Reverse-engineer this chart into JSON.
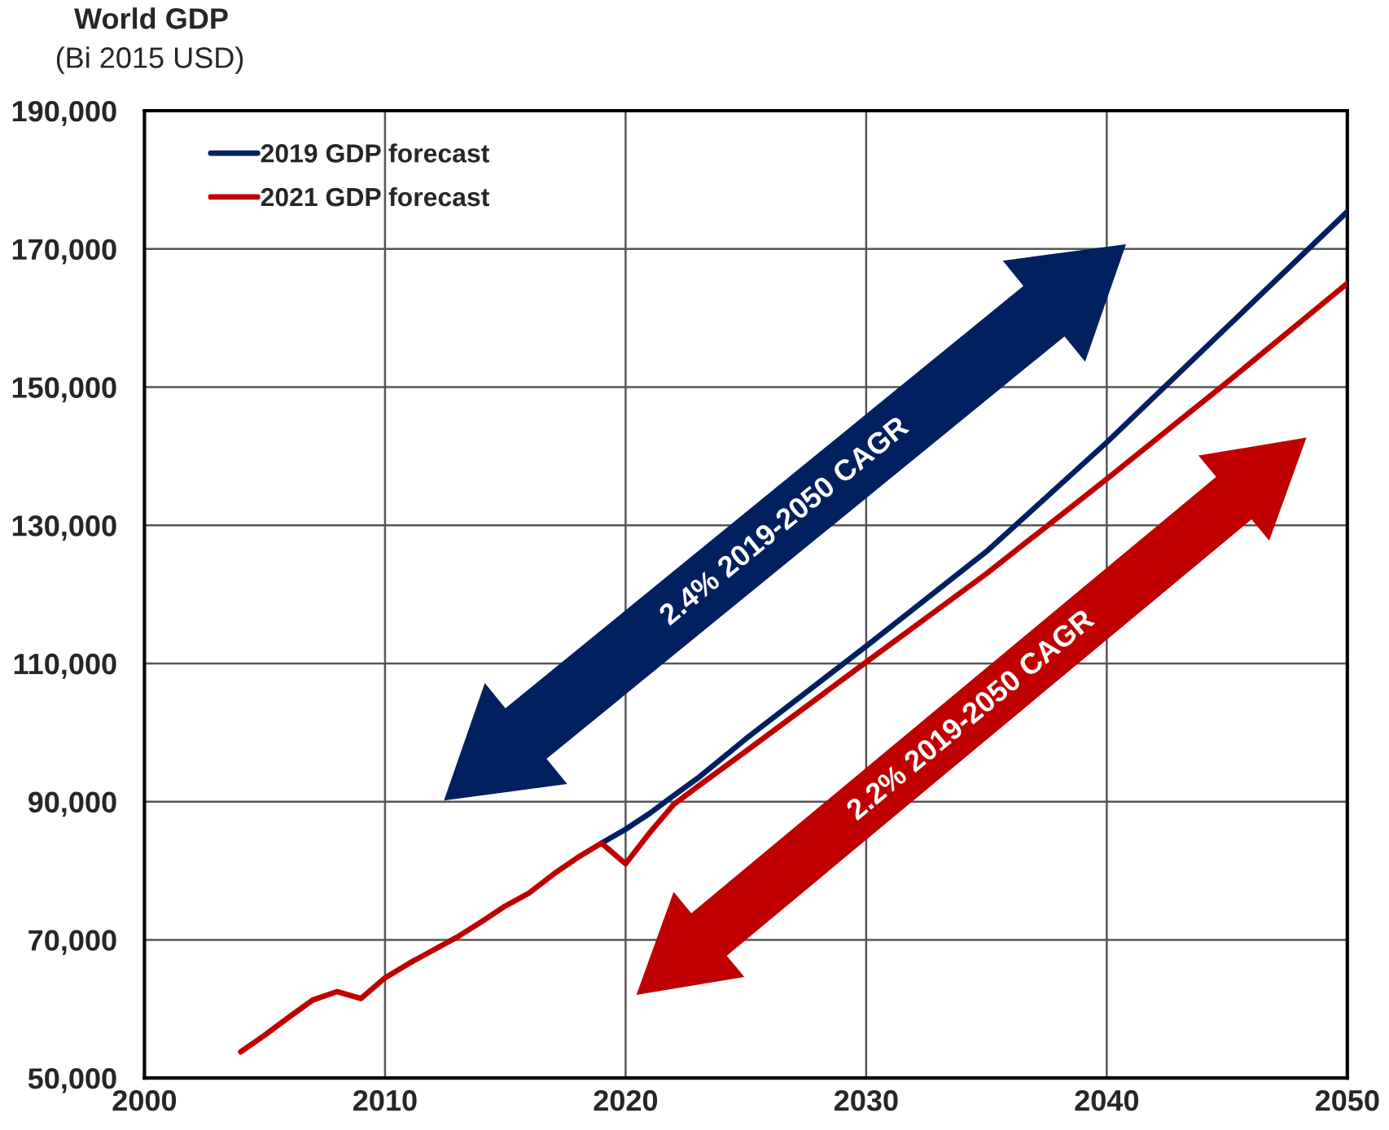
{
  "chart_data": {
    "type": "line",
    "title": "World GDP",
    "subtitle": "(Bi 2015 USD)",
    "series": [
      {
        "name": "2019 GDP forecast",
        "color": "#002060",
        "x": [
          2019,
          2020,
          2021,
          2022,
          2023,
          2025,
          2030,
          2035,
          2040,
          2045,
          2050
        ],
        "values": [
          84000,
          86000,
          88300,
          90900,
          93400,
          99100,
          112500,
          126200,
          142000,
          158700,
          175400
        ]
      },
      {
        "name": "2021 GDP forecast",
        "color": "#c00000",
        "x": [
          2004,
          2005,
          2006,
          2007,
          2008,
          2009,
          2010,
          2011,
          2012,
          2013,
          2014,
          2015,
          2016,
          2017,
          2018,
          2019,
          2020,
          2021,
          2022,
          2023,
          2025,
          2030,
          2035,
          2040,
          2045,
          2050
        ],
        "values": [
          53800,
          56200,
          58800,
          61300,
          62500,
          61500,
          64500,
          66600,
          68500,
          70400,
          72600,
          74900,
          76800,
          79500,
          81900,
          84000,
          81000,
          85500,
          89600,
          92200,
          97300,
          110200,
          123000,
          136700,
          150700,
          165000
        ]
      }
    ],
    "xlim": [
      2000,
      2050
    ],
    "xticks": [
      2000,
      2010,
      2020,
      2030,
      2040,
      2050
    ],
    "ylim": [
      50000,
      190000
    ],
    "yticks": [
      {
        "value": 50000,
        "label": "50,000"
      },
      {
        "value": 70000,
        "label": "70,000"
      },
      {
        "value": 90000,
        "label": "90,000"
      },
      {
        "value": 110000,
        "label": "110,000"
      },
      {
        "value": 130000,
        "label": "130,000"
      },
      {
        "value": 150000,
        "label": "150,000"
      },
      {
        "value": 170000,
        "label": "170,000"
      },
      {
        "value": 190000,
        "label": "190,000"
      }
    ],
    "grid": true,
    "legend": "top left",
    "line_style": "solid",
    "annotations": [
      "2.4% 2019-2050 CAGR",
      "2.2% 2019-2050 CAGR"
    ]
  }
}
